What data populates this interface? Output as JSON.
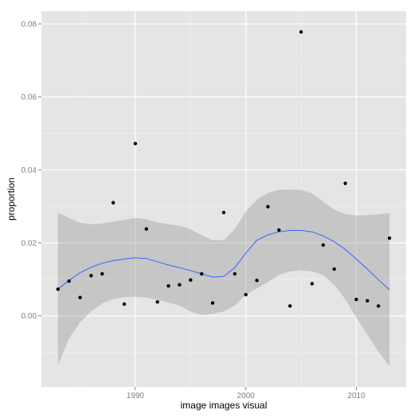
{
  "chart_data": {
    "type": "scatter",
    "title": "",
    "xlabel": "image images visual",
    "ylabel": "proportion",
    "xlim": [
      1981.5,
      2014.5
    ],
    "ylim": [
      -0.0195,
      0.0835
    ],
    "xticks": [
      1990,
      2000,
      2010
    ],
    "xtick_labels": [
      "1990",
      "2000",
      "2010"
    ],
    "yticks": [
      0.0,
      0.02,
      0.04,
      0.06,
      0.08
    ],
    "ytick_labels": [
      "0.00",
      "0.02",
      "0.04",
      "0.06",
      "0.08"
    ],
    "grid": true,
    "points": {
      "x": [
        1983,
        1984,
        1985,
        1986,
        1987,
        1988,
        1989,
        1990,
        1991,
        1992,
        1993,
        1994,
        1995,
        1996,
        1997,
        1998,
        1999,
        2000,
        2001,
        2002,
        2003,
        2004,
        2005,
        2006,
        2007,
        2008,
        2009,
        2010,
        2011,
        2012,
        2013
      ],
      "y": [
        0.0073,
        0.0095,
        0.005,
        0.011,
        0.0115,
        0.031,
        0.0032,
        0.0472,
        0.0238,
        0.0038,
        0.0082,
        0.0085,
        0.0098,
        0.0115,
        0.0035,
        0.0283,
        0.0115,
        0.0058,
        0.0097,
        0.0299,
        0.0235,
        0.0027,
        0.0778,
        0.0088,
        0.0194,
        0.0128,
        0.0363,
        0.0045,
        0.0041,
        0.0027,
        0.0213
      ]
    },
    "smooth": {
      "x": [
        1983,
        1984,
        1985,
        1986,
        1987,
        1988,
        1989,
        1990,
        1991,
        1992,
        1993,
        1994,
        1995,
        1996,
        1997,
        1998,
        1999,
        2000,
        2001,
        2002,
        2003,
        2004,
        2005,
        2006,
        2007,
        2008,
        2009,
        2010,
        2011,
        2012,
        2013
      ],
      "y": [
        0.0073,
        0.0097,
        0.0118,
        0.0133,
        0.0144,
        0.0151,
        0.0156,
        0.0159,
        0.0157,
        0.0148,
        0.0139,
        0.0132,
        0.0124,
        0.0115,
        0.0106,
        0.0108,
        0.0132,
        0.0172,
        0.0207,
        0.0222,
        0.023,
        0.0234,
        0.0234,
        0.023,
        0.0219,
        0.0203,
        0.0182,
        0.0156,
        0.0128,
        0.0099,
        0.0071
      ],
      "lower": [
        -0.0135,
        -0.0062,
        -0.0018,
        0.0012,
        0.0034,
        0.0046,
        0.0051,
        0.0052,
        0.005,
        0.0044,
        0.0036,
        0.0028,
        0.0012,
        0.0002,
        0.0005,
        0.0012,
        0.0028,
        0.0058,
        0.0075,
        0.0092,
        0.0112,
        0.0122,
        0.0124,
        0.0122,
        0.0111,
        0.0085,
        0.0045,
        -0.0005,
        -0.0052,
        -0.0098,
        -0.0138
      ],
      "upper": [
        0.0283,
        0.0268,
        0.0255,
        0.0251,
        0.0253,
        0.0258,
        0.0263,
        0.0268,
        0.0265,
        0.0256,
        0.0251,
        0.0247,
        0.0237,
        0.0221,
        0.0207,
        0.0207,
        0.0238,
        0.0286,
        0.0318,
        0.0337,
        0.0345,
        0.0346,
        0.0345,
        0.0335,
        0.0313,
        0.0291,
        0.0279,
        0.0275,
        0.0276,
        0.0278,
        0.0281
      ]
    },
    "colors": {
      "panel": "#e5e5e5",
      "grid_major": "#ffffff",
      "grid_minor": "#f2f2f2",
      "points": "#000000",
      "smooth_line": "#3366ff",
      "ribbon": "#999999",
      "tick_text": "#7f7f7f"
    }
  }
}
